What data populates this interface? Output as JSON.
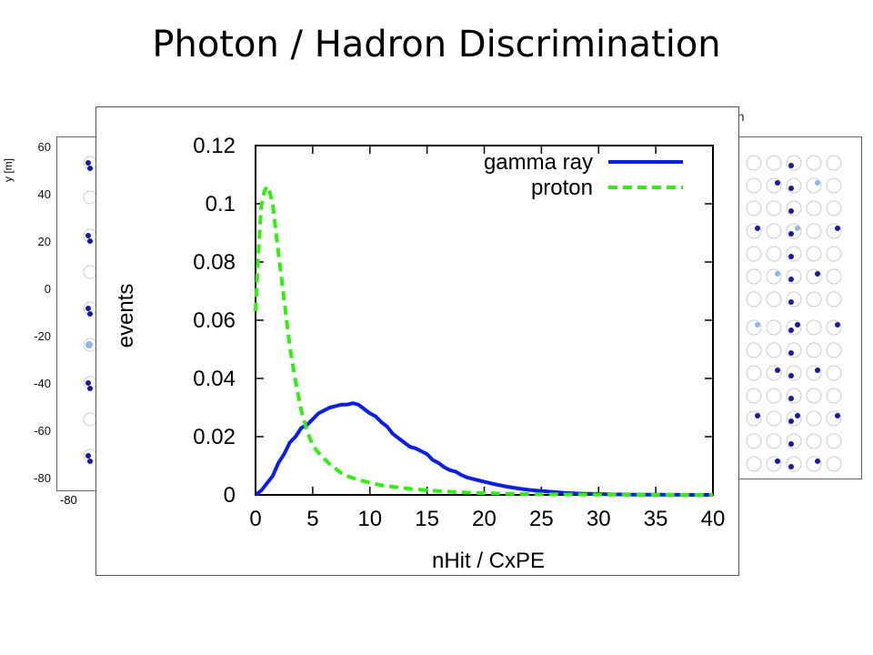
{
  "slide": {
    "title": "Photon / Hadron Discrimination"
  },
  "background": {
    "left_yaxis_label": "y [m]",
    "left_yaxis_ticks": [
      "60",
      "40",
      "20",
      "0",
      "-20",
      "-40",
      "-60",
      "-80"
    ],
    "left_xaxis_tick": "-80",
    "right_caption_fragment": "on",
    "hit_colors": {
      "dark": "#1a1aa0",
      "light": "#8fb8e8",
      "empty": "#cccccc"
    }
  },
  "chart_data": {
    "type": "line",
    "xlabel": "nHit / CxPE",
    "ylabel": "events",
    "xlim": [
      0,
      40
    ],
    "ylim": [
      0,
      0.12
    ],
    "x_ticks": [
      "0",
      "5",
      "10",
      "15",
      "20",
      "25",
      "30",
      "35",
      "40"
    ],
    "y_ticks": [
      "0",
      "0.02",
      "0.04",
      "0.06",
      "0.08",
      "0.1",
      "0.12"
    ],
    "legend_position": "top-right",
    "series": [
      {
        "name": "gamma ray",
        "color": "#0a1ee6",
        "style": "solid",
        "x": [
          0,
          0.5,
          1,
          1.5,
          2,
          2.5,
          3,
          3.5,
          4,
          4.5,
          5,
          5.5,
          6,
          6.5,
          7,
          7.5,
          8,
          8.5,
          9,
          9.5,
          10,
          10.5,
          11,
          11.5,
          12,
          12.5,
          13,
          13.5,
          14,
          14.5,
          15,
          15.5,
          16,
          16.5,
          17,
          17.5,
          18,
          18.5,
          19,
          19.5,
          20,
          21,
          22,
          23,
          24,
          25,
          26,
          27,
          28,
          29,
          30,
          31,
          32,
          33,
          34,
          35,
          36,
          37,
          38,
          39,
          40
        ],
        "y": [
          0,
          0.0015,
          0.004,
          0.0065,
          0.011,
          0.014,
          0.018,
          0.02,
          0.023,
          0.024,
          0.026,
          0.028,
          0.029,
          0.03,
          0.0305,
          0.031,
          0.031,
          0.0315,
          0.031,
          0.0295,
          0.028,
          0.027,
          0.025,
          0.0235,
          0.021,
          0.0195,
          0.018,
          0.0165,
          0.016,
          0.015,
          0.014,
          0.012,
          0.011,
          0.0095,
          0.0085,
          0.008,
          0.0068,
          0.006,
          0.0055,
          0.005,
          0.0045,
          0.0036,
          0.0028,
          0.0022,
          0.0017,
          0.0013,
          0.001,
          0.0007,
          0.0005,
          0.0004,
          0.0003,
          0.0002,
          0.00015,
          0.0001,
          8e-05,
          5e-05,
          3e-05,
          2e-05,
          1e-05,
          0,
          0
        ]
      },
      {
        "name": "proton",
        "color": "#33ee11",
        "style": "dashed",
        "x": [
          0,
          0.25,
          0.5,
          0.75,
          1,
          1.25,
          1.5,
          2,
          2.5,
          3,
          3.5,
          4,
          4.5,
          5,
          5.5,
          6,
          6.5,
          7,
          7.5,
          8,
          9,
          10,
          11,
          12,
          13,
          14,
          15,
          16,
          17,
          18,
          19,
          20,
          22,
          24,
          26,
          28,
          30,
          32,
          34,
          36,
          38,
          40
        ],
        "y": [
          0.063,
          0.083,
          0.099,
          0.104,
          0.106,
          0.104,
          0.1,
          0.083,
          0.067,
          0.051,
          0.039,
          0.029,
          0.022,
          0.017,
          0.0145,
          0.0125,
          0.0105,
          0.009,
          0.0075,
          0.0065,
          0.0052,
          0.0042,
          0.0033,
          0.0028,
          0.0023,
          0.0019,
          0.0016,
          0.0013,
          0.0011,
          0.0009,
          0.0007,
          0.0006,
          0.0004,
          0.0003,
          0.0002,
          0.00015,
          0.0001,
          5e-05,
          3e-05,
          2e-05,
          1e-05,
          0
        ]
      }
    ]
  }
}
